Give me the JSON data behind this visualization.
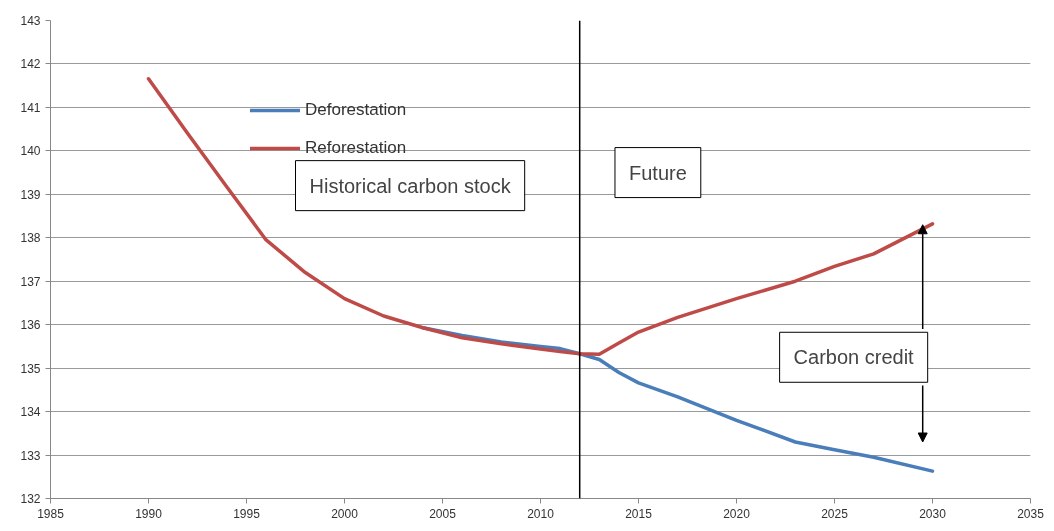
{
  "chart_data": {
    "type": "line",
    "series": [
      {
        "name": "Deforestation",
        "color": "#4a7ebb",
        "x": [
          2004,
          2006,
          2008,
          2010,
          2011,
          2012,
          2013,
          2014,
          2015,
          2017,
          2020,
          2023,
          2025,
          2027,
          2030
        ],
        "values": [
          135.93,
          135.75,
          135.6,
          135.5,
          135.45,
          135.33,
          135.2,
          134.9,
          134.66,
          134.34,
          133.8,
          133.3,
          133.12,
          132.95,
          132.63
        ]
      },
      {
        "name": "Reforestation",
        "color": "#be4b48",
        "x": [
          1990,
          1992,
          1994,
          1996,
          1998,
          2000,
          2002,
          2004,
          2006,
          2008,
          2010,
          2011,
          2012,
          2013,
          2014,
          2015,
          2017,
          2020,
          2023,
          2025,
          2027,
          2030
        ],
        "values": [
          141.66,
          140.4,
          139.17,
          137.95,
          137.2,
          136.6,
          136.2,
          135.93,
          135.7,
          135.56,
          135.44,
          135.38,
          135.33,
          135.32,
          135.58,
          135.83,
          136.17,
          136.6,
          137.0,
          137.34,
          137.63,
          138.32
        ]
      }
    ],
    "xlim": [
      1985,
      2035
    ],
    "xticks": [
      1985,
      1990,
      1995,
      2000,
      2005,
      2010,
      2015,
      2020,
      2025,
      2030,
      2035
    ],
    "ylim": [
      132,
      143
    ],
    "yticks": [
      132,
      133,
      134,
      135,
      136,
      137,
      138,
      139,
      140,
      141,
      142,
      143
    ],
    "grid": "y",
    "legend": "top left",
    "marker": "none",
    "line_style": "solid",
    "ref_lines": [
      {
        "axis": "x",
        "value": 2012,
        "color": "#000000"
      }
    ],
    "annotations": [
      "Historical carbon stock",
      "Future",
      {
        "text": "Carbon credit",
        "x": 2029.5,
        "y": 138.3
      }
    ]
  }
}
